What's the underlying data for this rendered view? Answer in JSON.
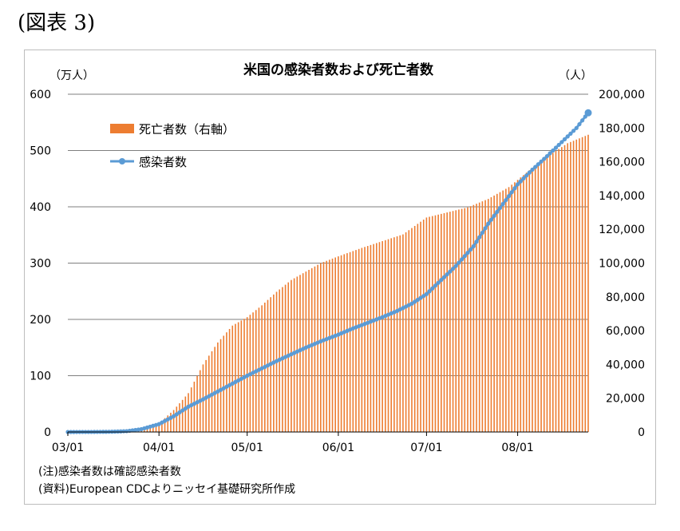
{
  "figure_label": "(図表 3)",
  "notes": [
    "(注)感染者数は確認感染者数",
    "(資料)European CDCよりニッセイ基礎研究所作成"
  ],
  "colors": {
    "deaths": "#ED7D31",
    "infections": "#5B9BD5",
    "grid": "#7f7f7f"
  },
  "chart_data": {
    "type": "bar",
    "title": "米国の感染者数および死亡者数",
    "y_left_unit": "（万人）",
    "y_right_unit": "（人）",
    "y_left": {
      "min": 0,
      "max": 600,
      "ticks": [
        "0",
        "100",
        "200",
        "300",
        "400",
        "500",
        "600"
      ]
    },
    "y_right": {
      "min": 0,
      "max": 200000,
      "ticks": [
        "0",
        "20,000",
        "40,000",
        "60,000",
        "80,000",
        "100,000",
        "120,000",
        "140,000",
        "160,000",
        "180,000",
        "200,000"
      ]
    },
    "x_ticks": [
      {
        "label": "03/01",
        "day": 0
      },
      {
        "label": "04/01",
        "day": 31
      },
      {
        "label": "05/01",
        "day": 61
      },
      {
        "label": "06/01",
        "day": 92
      },
      {
        "label": "07/01",
        "day": 122
      },
      {
        "label": "08/01",
        "day": 153
      }
    ],
    "x_range": [
      0,
      177
    ],
    "legend": {
      "position": "top-left",
      "entries": [
        "死亡者数（右軸）",
        "感染者数"
      ]
    },
    "series": [
      {
        "name": "死亡者数（右軸）",
        "type": "bar",
        "axis": "right",
        "points": [
          [
            0,
            0
          ],
          [
            10,
            50
          ],
          [
            20,
            600
          ],
          [
            26,
            2000
          ],
          [
            31,
            5000
          ],
          [
            36,
            13000
          ],
          [
            41,
            23000
          ],
          [
            46,
            40000
          ],
          [
            51,
            53000
          ],
          [
            56,
            63000
          ],
          [
            61,
            68000
          ],
          [
            66,
            75000
          ],
          [
            71,
            83000
          ],
          [
            76,
            90000
          ],
          [
            81,
            95000
          ],
          [
            86,
            100000
          ],
          [
            92,
            104000
          ],
          [
            100,
            109000
          ],
          [
            107,
            113000
          ],
          [
            114,
            117000
          ],
          [
            122,
            127000
          ],
          [
            129,
            130000
          ],
          [
            136,
            133000
          ],
          [
            143,
            138000
          ],
          [
            150,
            145000
          ],
          [
            157,
            155000
          ],
          [
            163,
            163000
          ],
          [
            170,
            171000
          ],
          [
            177,
            176000
          ]
        ]
      },
      {
        "name": "感染者数",
        "type": "line",
        "axis": "left",
        "points": [
          [
            0,
            0
          ],
          [
            8,
            0.1
          ],
          [
            15,
            0.5
          ],
          [
            20,
            1.5
          ],
          [
            25,
            5
          ],
          [
            31,
            14
          ],
          [
            36,
            28
          ],
          [
            41,
            45
          ],
          [
            46,
            58
          ],
          [
            51,
            72
          ],
          [
            56,
            86
          ],
          [
            61,
            100
          ],
          [
            66,
            113
          ],
          [
            71,
            126
          ],
          [
            76,
            138
          ],
          [
            81,
            150
          ],
          [
            86,
            161
          ],
          [
            92,
            173
          ],
          [
            97,
            184
          ],
          [
            102,
            194
          ],
          [
            107,
            204
          ],
          [
            112,
            215
          ],
          [
            117,
            228
          ],
          [
            122,
            245
          ],
          [
            127,
            270
          ],
          [
            132,
            295
          ],
          [
            138,
            330
          ],
          [
            143,
            370
          ],
          [
            148,
            405
          ],
          [
            153,
            440
          ],
          [
            158,
            466
          ],
          [
            163,
            490
          ],
          [
            168,
            515
          ],
          [
            173,
            540
          ],
          [
            177,
            567
          ]
        ]
      }
    ]
  }
}
